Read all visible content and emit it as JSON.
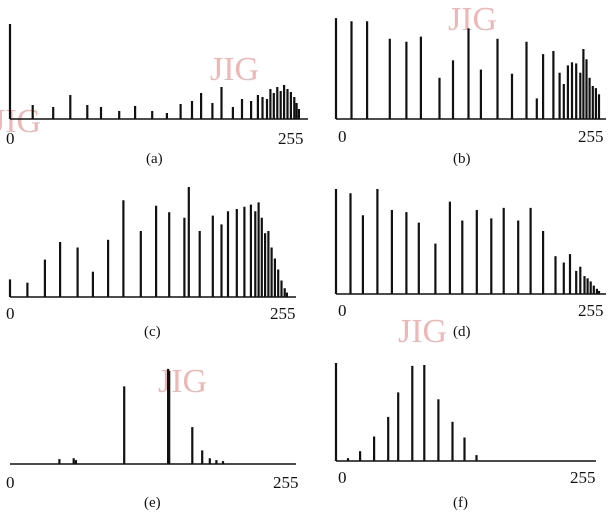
{
  "watermark_text": "JIG",
  "watermark_color": "#e7a0a0",
  "bar_color": "#111111",
  "chart_data": [
    {
      "type": "bar",
      "caption": "(a)",
      "tick_labels": [
        "0",
        "255"
      ],
      "xlim": [
        0,
        255
      ],
      "ylim": [
        0,
        100
      ],
      "bars": [
        {
          "x": 0,
          "y": 95
        },
        {
          "x": 20,
          "y": 14
        },
        {
          "x": 38,
          "y": 12
        },
        {
          "x": 53,
          "y": 24
        },
        {
          "x": 68,
          "y": 14
        },
        {
          "x": 80,
          "y": 12
        },
        {
          "x": 96,
          "y": 8
        },
        {
          "x": 110,
          "y": 13
        },
        {
          "x": 125,
          "y": 8
        },
        {
          "x": 138,
          "y": 6
        },
        {
          "x": 150,
          "y": 15
        },
        {
          "x": 160,
          "y": 18
        },
        {
          "x": 168,
          "y": 26
        },
        {
          "x": 178,
          "y": 16
        },
        {
          "x": 186,
          "y": 32
        },
        {
          "x": 196,
          "y": 12
        },
        {
          "x": 204,
          "y": 20
        },
        {
          "x": 212,
          "y": 18
        },
        {
          "x": 218,
          "y": 24
        },
        {
          "x": 222,
          "y": 22
        },
        {
          "x": 226,
          "y": 20
        },
        {
          "x": 229,
          "y": 30
        },
        {
          "x": 232,
          "y": 26
        },
        {
          "x": 235,
          "y": 32
        },
        {
          "x": 238,
          "y": 28
        },
        {
          "x": 241,
          "y": 34
        },
        {
          "x": 244,
          "y": 30
        },
        {
          "x": 247,
          "y": 27
        },
        {
          "x": 250,
          "y": 22
        },
        {
          "x": 252,
          "y": 16
        },
        {
          "x": 254,
          "y": 10
        }
      ]
    },
    {
      "type": "bar",
      "caption": "(b)",
      "tick_labels": [
        "0",
        "255"
      ],
      "xlim": [
        0,
        255
      ],
      "ylim": [
        0,
        100
      ],
      "bars": [
        {
          "x": 0,
          "y": 98
        },
        {
          "x": 15,
          "y": 95
        },
        {
          "x": 30,
          "y": 95
        },
        {
          "x": 52,
          "y": 78
        },
        {
          "x": 68,
          "y": 75
        },
        {
          "x": 82,
          "y": 80
        },
        {
          "x": 100,
          "y": 40
        },
        {
          "x": 113,
          "y": 57
        },
        {
          "x": 128,
          "y": 88
        },
        {
          "x": 140,
          "y": 48
        },
        {
          "x": 156,
          "y": 78
        },
        {
          "x": 170,
          "y": 44
        },
        {
          "x": 184,
          "y": 75
        },
        {
          "x": 194,
          "y": 20
        },
        {
          "x": 200,
          "y": 63
        },
        {
          "x": 210,
          "y": 66
        },
        {
          "x": 216,
          "y": 45
        },
        {
          "x": 220,
          "y": 34
        },
        {
          "x": 224,
          "y": 52
        },
        {
          "x": 228,
          "y": 55
        },
        {
          "x": 232,
          "y": 54
        },
        {
          "x": 236,
          "y": 45
        },
        {
          "x": 239,
          "y": 68
        },
        {
          "x": 242,
          "y": 58
        },
        {
          "x": 245,
          "y": 40
        },
        {
          "x": 248,
          "y": 32
        },
        {
          "x": 251,
          "y": 30
        },
        {
          "x": 254,
          "y": 24
        }
      ]
    },
    {
      "type": "bar",
      "caption": "(c)",
      "tick_labels": [
        "0",
        "255"
      ],
      "xlim": [
        0,
        255
      ],
      "ylim": [
        0,
        100
      ],
      "bars": [
        {
          "x": 0,
          "y": 16
        },
        {
          "x": 16,
          "y": 13
        },
        {
          "x": 32,
          "y": 34
        },
        {
          "x": 46,
          "y": 50
        },
        {
          "x": 62,
          "y": 45
        },
        {
          "x": 76,
          "y": 23
        },
        {
          "x": 90,
          "y": 52
        },
        {
          "x": 104,
          "y": 88
        },
        {
          "x": 120,
          "y": 60
        },
        {
          "x": 134,
          "y": 83
        },
        {
          "x": 146,
          "y": 77
        },
        {
          "x": 160,
          "y": 72
        },
        {
          "x": 164,
          "y": 100
        },
        {
          "x": 174,
          "y": 60
        },
        {
          "x": 186,
          "y": 74
        },
        {
          "x": 194,
          "y": 66
        },
        {
          "x": 200,
          "y": 78
        },
        {
          "x": 208,
          "y": 80
        },
        {
          "x": 215,
          "y": 82
        },
        {
          "x": 221,
          "y": 84
        },
        {
          "x": 225,
          "y": 78
        },
        {
          "x": 228,
          "y": 86
        },
        {
          "x": 231,
          "y": 72
        },
        {
          "x": 234,
          "y": 58
        },
        {
          "x": 237,
          "y": 60
        },
        {
          "x": 240,
          "y": 45
        },
        {
          "x": 243,
          "y": 35
        },
        {
          "x": 246,
          "y": 25
        },
        {
          "x": 249,
          "y": 15
        },
        {
          "x": 252,
          "y": 8
        },
        {
          "x": 254,
          "y": 4
        }
      ]
    },
    {
      "type": "bar",
      "caption": "(d)",
      "tick_labels": [
        "0",
        "255"
      ],
      "xlim": [
        0,
        255
      ],
      "ylim": [
        0,
        100
      ],
      "bars": [
        {
          "x": 0,
          "y": 100
        },
        {
          "x": 14,
          "y": 96
        },
        {
          "x": 26,
          "y": 75
        },
        {
          "x": 40,
          "y": 100
        },
        {
          "x": 54,
          "y": 80
        },
        {
          "x": 68,
          "y": 78
        },
        {
          "x": 80,
          "y": 68
        },
        {
          "x": 96,
          "y": 48
        },
        {
          "x": 110,
          "y": 88
        },
        {
          "x": 122,
          "y": 70
        },
        {
          "x": 136,
          "y": 80
        },
        {
          "x": 150,
          "y": 72
        },
        {
          "x": 162,
          "y": 82
        },
        {
          "x": 176,
          "y": 70
        },
        {
          "x": 188,
          "y": 82
        },
        {
          "x": 200,
          "y": 60
        },
        {
          "x": 212,
          "y": 36
        },
        {
          "x": 220,
          "y": 30
        },
        {
          "x": 226,
          "y": 38
        },
        {
          "x": 232,
          "y": 22
        },
        {
          "x": 236,
          "y": 26
        },
        {
          "x": 240,
          "y": 17
        },
        {
          "x": 243,
          "y": 15
        },
        {
          "x": 246,
          "y": 12
        },
        {
          "x": 249,
          "y": 8
        },
        {
          "x": 252,
          "y": 5
        },
        {
          "x": 254,
          "y": 3
        }
      ]
    },
    {
      "type": "bar",
      "caption": "(e)",
      "tick_labels": [
        "0",
        "255"
      ],
      "xlim": [
        0,
        255
      ],
      "ylim": [
        0,
        100
      ],
      "bars": [
        {
          "x": 45,
          "y": 5
        },
        {
          "x": 58,
          "y": 6
        },
        {
          "x": 60,
          "y": 4
        },
        {
          "x": 104,
          "y": 80
        },
        {
          "x": 144,
          "y": 98
        },
        {
          "x": 145,
          "y": 96
        },
        {
          "x": 166,
          "y": 38
        },
        {
          "x": 175,
          "y": 14
        },
        {
          "x": 182,
          "y": 6
        },
        {
          "x": 188,
          "y": 4
        },
        {
          "x": 194,
          "y": 3
        }
      ]
    },
    {
      "type": "bar",
      "caption": "(f)",
      "tick_labels": [
        "0",
        "255"
      ],
      "xlim": [
        0,
        255
      ],
      "ylim": [
        0,
        100
      ],
      "bars": [
        {
          "x": 0,
          "y": 100
        },
        {
          "x": 12,
          "y": 3
        },
        {
          "x": 24,
          "y": 10
        },
        {
          "x": 38,
          "y": 25
        },
        {
          "x": 52,
          "y": 45
        },
        {
          "x": 62,
          "y": 70
        },
        {
          "x": 76,
          "y": 97
        },
        {
          "x": 88,
          "y": 98
        },
        {
          "x": 102,
          "y": 63
        },
        {
          "x": 116,
          "y": 40
        },
        {
          "x": 128,
          "y": 24
        },
        {
          "x": 140,
          "y": 6
        }
      ]
    }
  ]
}
